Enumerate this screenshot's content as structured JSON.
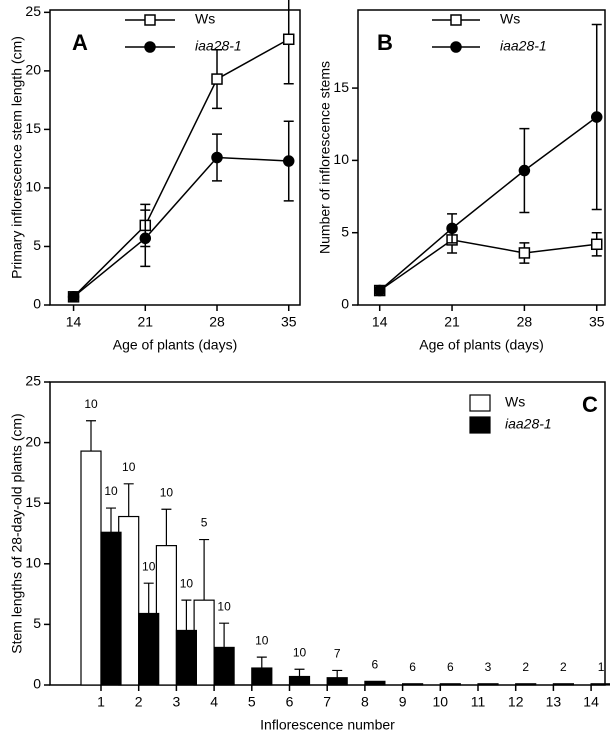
{
  "chart_data": [
    {
      "type": "line",
      "panel": "A",
      "xlabel": "Age of plants (days)",
      "ylabel": "Primary inflorescence stem length (cm)",
      "x": [
        14,
        21,
        28,
        35
      ],
      "xlim": [
        11.7,
        36.1
      ],
      "xticks": [
        14,
        21,
        28,
        35
      ],
      "ylim": [
        0,
        25.2
      ],
      "yticks": [
        0,
        5,
        10,
        15,
        20,
        25
      ],
      "series": [
        {
          "name": "Ws",
          "color": "#000000",
          "marker": "square",
          "values": [
            0.7,
            6.8,
            19.3,
            22.7
          ],
          "errors": [
            0.2,
            1.8,
            2.5,
            3.8
          ]
        },
        {
          "name": "iaa28-1",
          "color": "#000000",
          "marker": "circle",
          "font_style": "italic",
          "values": [
            0.7,
            5.7,
            12.6,
            12.3
          ],
          "errors": [
            0.2,
            2.4,
            2.0,
            3.4
          ]
        }
      ]
    },
    {
      "type": "line",
      "panel": "B",
      "xlabel": "Age of plants (days)",
      "ylabel": "Number of inflorescence stems",
      "x": [
        14,
        21,
        28,
        35
      ],
      "xlim": [
        11.9,
        35.8
      ],
      "xticks": [
        14,
        21,
        28,
        35
      ],
      "ylim": [
        0,
        20.4
      ],
      "yticks": [
        0,
        5,
        10,
        15
      ],
      "series": [
        {
          "name": "Ws",
          "color": "#000000",
          "marker": "square",
          "values": [
            1,
            4.5,
            3.6,
            4.2
          ],
          "errors": [
            0,
            0.9,
            0.7,
            0.8
          ]
        },
        {
          "name": "iaa28-1",
          "color": "#000000",
          "marker": "circle",
          "font_style": "italic",
          "values": [
            1,
            5.3,
            9.3,
            13.0
          ],
          "errors": [
            0,
            1.0,
            2.9,
            6.4
          ]
        }
      ]
    },
    {
      "type": "bar",
      "panel": "C",
      "xlabel": "Inflorescence number",
      "ylabel": "Stem lengths of 28-day-old plants (cm)",
      "categories": [
        "1",
        "2",
        "3",
        "4",
        "5",
        "6",
        "7",
        "8",
        "9",
        "10",
        "11",
        "12",
        "13",
        "14"
      ],
      "ylim": [
        0,
        25
      ],
      "yticks": [
        0,
        5,
        10,
        15,
        20,
        25
      ],
      "series": [
        {
          "name": "Ws",
          "color": "#ffffff",
          "values": [
            19.3,
            13.9,
            11.5,
            7.0,
            null,
            null,
            null,
            null,
            null,
            null,
            null,
            null,
            null,
            null
          ],
          "errors": [
            2.5,
            2.7,
            3.0,
            5.0,
            null,
            null,
            null,
            null,
            null,
            null,
            null,
            null,
            null,
            null
          ],
          "counts": [
            10,
            10,
            10,
            5,
            null,
            null,
            null,
            null,
            null,
            null,
            null,
            null,
            null,
            null
          ]
        },
        {
          "name": "iaa28-1",
          "color": "#000000",
          "font_style": "italic",
          "values": [
            12.6,
            5.9,
            4.5,
            3.1,
            1.4,
            0.7,
            0.6,
            0.3,
            0.1,
            0.1,
            0.1,
            0.1,
            0.1,
            0.1
          ],
          "errors": [
            2.0,
            2.5,
            2.5,
            2.0,
            0.9,
            0.6,
            0.6,
            null,
            null,
            null,
            null,
            null,
            null,
            null
          ],
          "counts": [
            10,
            10,
            10,
            10,
            10,
            10,
            7,
            6,
            6,
            6,
            3,
            2,
            2,
            1
          ]
        }
      ]
    }
  ]
}
